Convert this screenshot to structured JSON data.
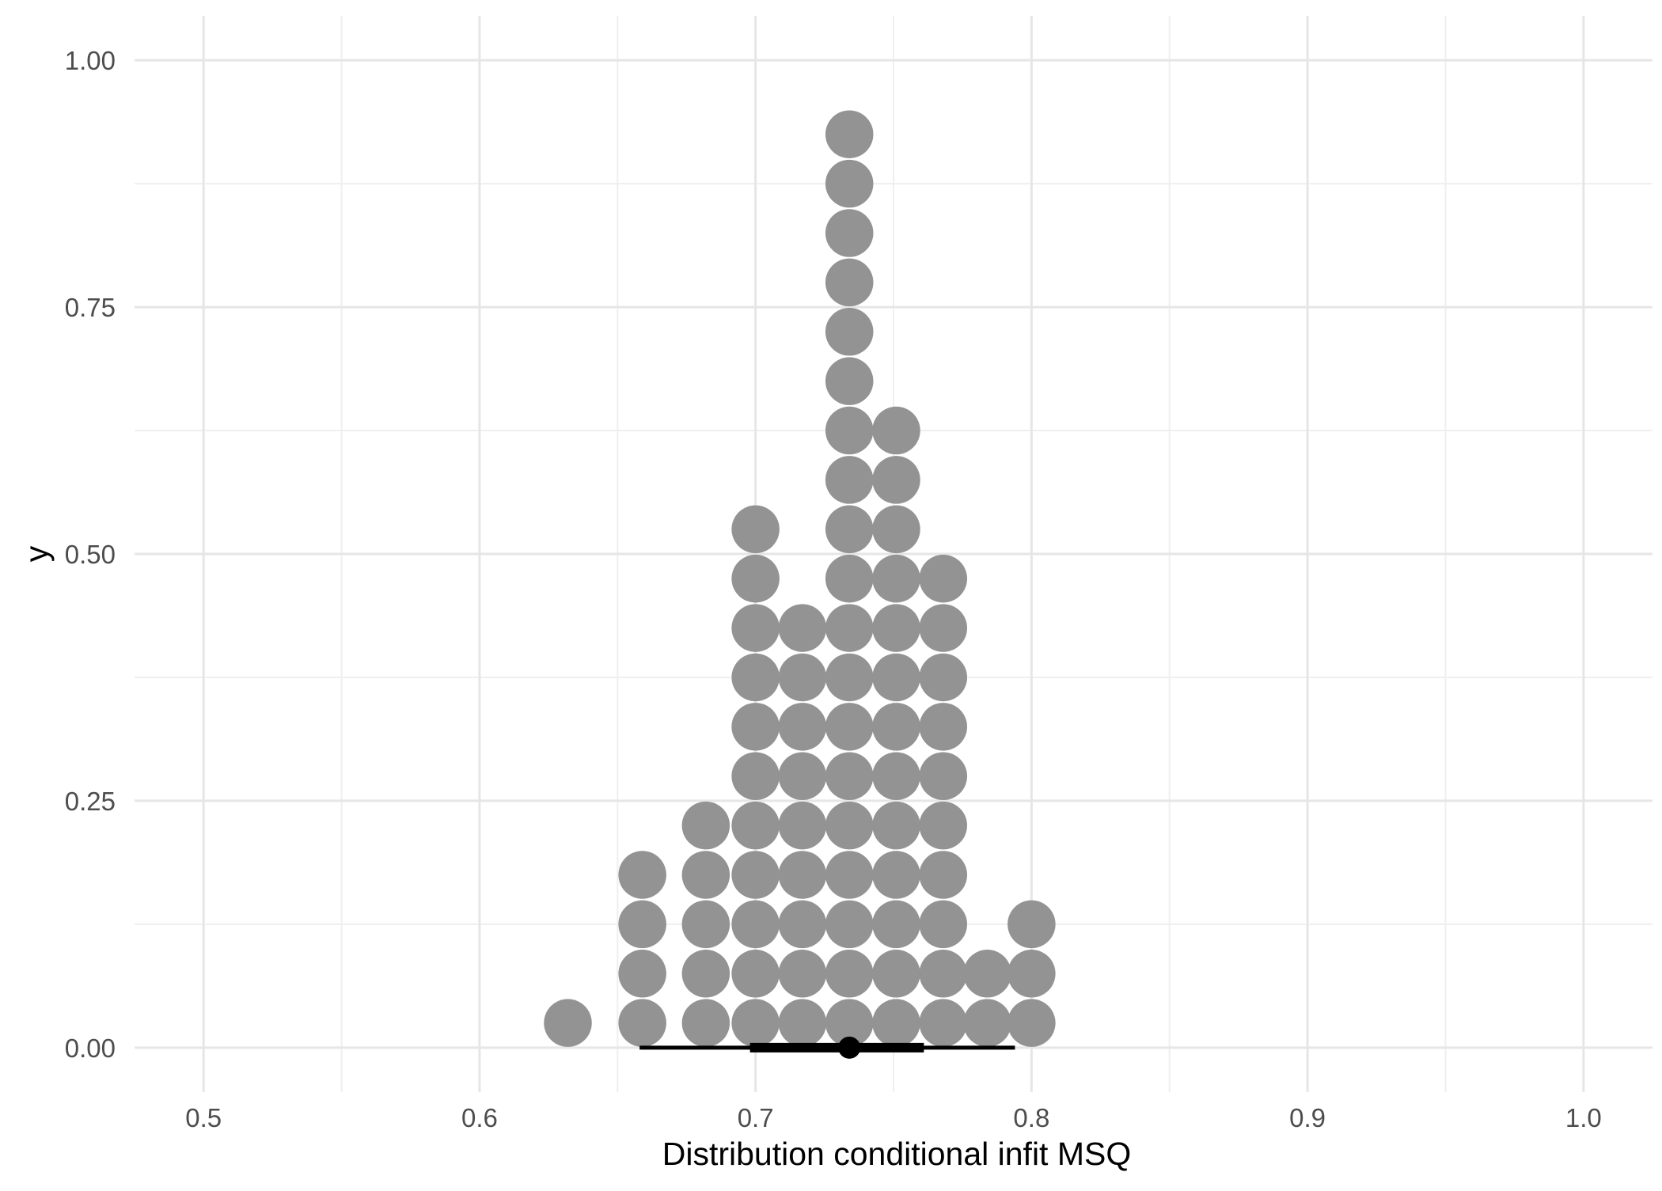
{
  "chart_data": {
    "type": "dotplot",
    "xlabel": "Distribution conditional infit MSQ",
    "ylabel": "y",
    "xlim": [
      0.475,
      1.025
    ],
    "ylim": [
      -0.045,
      1.045
    ],
    "x_ticks": [
      0.5,
      0.6,
      0.7,
      0.8,
      0.9,
      1.0
    ],
    "x_tick_labels": [
      "0.5",
      "0.6",
      "0.7",
      "0.8",
      "0.9",
      "1.0"
    ],
    "y_ticks": [
      0.0,
      0.25,
      0.5,
      0.75,
      1.0
    ],
    "y_tick_labels": [
      "0.00",
      "0.25",
      "0.50",
      "0.75",
      "1.00"
    ],
    "grid": true,
    "dot_color": "#939393",
    "dot_step": 0.05,
    "bins": [
      {
        "x": 0.632,
        "count": 1
      },
      {
        "x": 0.659,
        "count": 4
      },
      {
        "x": 0.682,
        "count": 5
      },
      {
        "x": 0.7,
        "count": 11
      },
      {
        "x": 0.717,
        "count": 9
      },
      {
        "x": 0.734,
        "count": 19
      },
      {
        "x": 0.751,
        "count": 13
      },
      {
        "x": 0.768,
        "count": 10
      },
      {
        "x": 0.784,
        "count": 2
      },
      {
        "x": 0.8,
        "count": 3
      }
    ],
    "interval": {
      "point": 0.734,
      "inner": [
        0.698,
        0.761
      ],
      "outer": [
        0.658,
        0.794
      ],
      "color": "#000000"
    }
  }
}
